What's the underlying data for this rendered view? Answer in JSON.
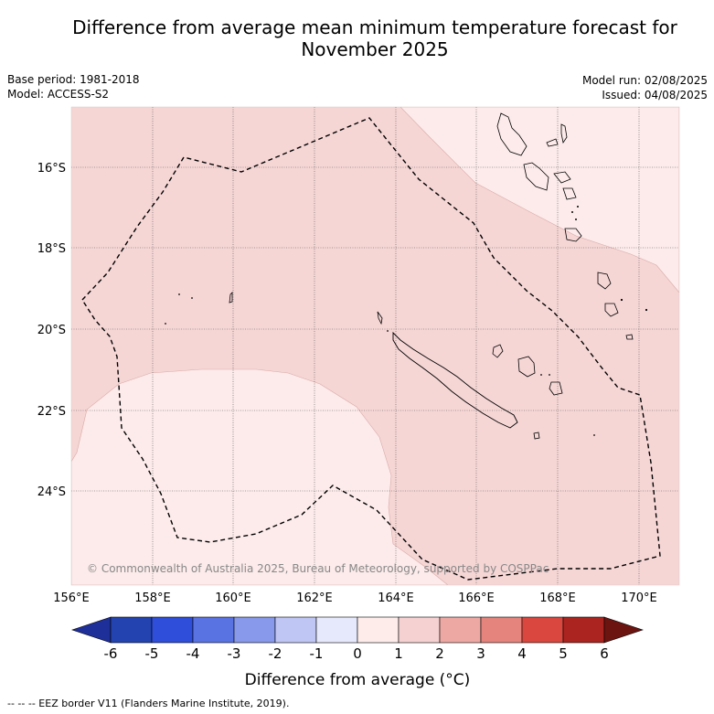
{
  "title_line1": "Difference from average mean minimum temperature forecast for",
  "title_line2": "November 2025",
  "base_period": "Base period: 1981-2018",
  "model": "Model: ACCESS-S2",
  "model_run": "Model run: 02/08/2025",
  "issued": "Issued: 04/08/2025",
  "copyright": "© Commonwealth of Australia 2025, Bureau of Meteorology, supported by COSPPac",
  "lon_labels": [
    "156°E",
    "158°E",
    "160°E",
    "162°E",
    "164°E",
    "166°E",
    "168°E",
    "170°E"
  ],
  "lat_labels": [
    "16°S",
    "18°S",
    "20°S",
    "22°S",
    "24°S"
  ],
  "colorbar": {
    "ticks": [
      "-6",
      "-5",
      "-4",
      "-3",
      "-2",
      "-1",
      "0",
      "1",
      "2",
      "3",
      "4",
      "5",
      "6"
    ],
    "colors": [
      "#1f2f99",
      "#2343b0",
      "#2f4ed9",
      "#5a73e3",
      "#8898ea",
      "#c0c6f3",
      "#e6e9fb",
      "#fdecea",
      "#f5d2d1",
      "#eea8a3",
      "#e4847d",
      "#d9473f",
      "#ac2420",
      "#6b1410"
    ],
    "title": "Difference from average (°C)"
  },
  "map_colors": {
    "zone_0_1": "#fcebea",
    "zone_1_2": "#f5d6d5"
  },
  "footnote": "--  --  -- EEZ border V11 (Flanders Marine Institute, 2019)."
}
